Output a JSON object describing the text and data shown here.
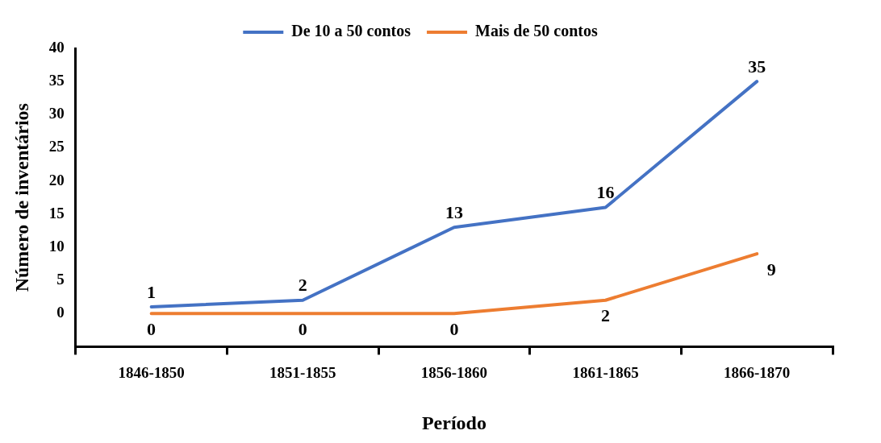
{
  "chart_data": {
    "type": "line",
    "xlabel": "Período",
    "ylabel": "Número de inventários",
    "categories": [
      "1846-1850",
      "1851-1855",
      "1856-1860",
      "1861-1865",
      "1866-1870"
    ],
    "series": [
      {
        "name": "De 10 a 50 contos",
        "color": "#4472c4",
        "values": [
          1,
          2,
          13,
          16,
          35
        ]
      },
      {
        "name": "Mais de 50 contos",
        "color": "#ed7d31",
        "values": [
          0,
          0,
          0,
          2,
          9
        ]
      }
    ],
    "ylim": [
      -5,
      40
    ],
    "yticks": [
      0,
      5,
      10,
      15,
      20,
      25,
      30,
      35,
      40
    ],
    "grid": false,
    "legend": "top",
    "marker": "none",
    "line_style": "solid",
    "data_labels": true
  }
}
